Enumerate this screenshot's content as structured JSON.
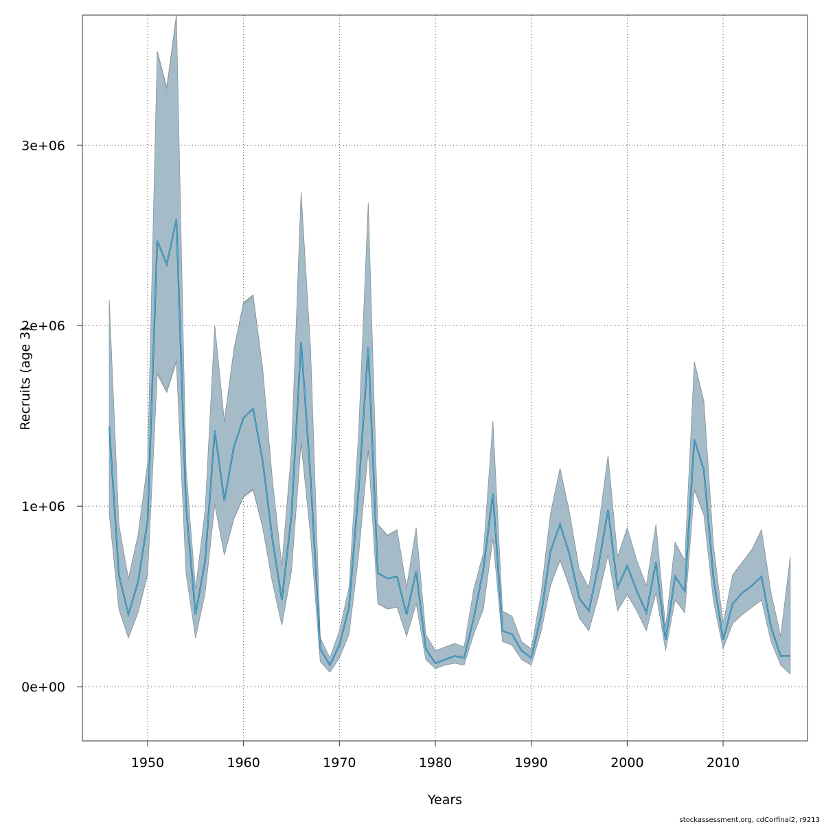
{
  "chart_data": {
    "type": "line",
    "xlabel": "Years",
    "ylabel": "Recruits (age 3)",
    "credit": "stockassessment.org, cdCorfinal2, r9213",
    "xlim": [
      1943.2,
      2018.8
    ],
    "ylim": [
      -300000,
      3720000
    ],
    "x_ticks": [
      1950,
      1960,
      1970,
      1980,
      1990,
      2000,
      2010
    ],
    "x_tick_labels": [
      "1950",
      "1960",
      "1970",
      "1980",
      "1990",
      "2000",
      "2010"
    ],
    "y_ticks": [
      0,
      1000000,
      2000000,
      3000000
    ],
    "y_tick_labels": [
      "0e+00",
      "1e+06",
      "2e+06",
      "3e+06"
    ],
    "grid": true,
    "colors": {
      "band_outer": "#9aa5ad",
      "band_inner": "#a8d8ec",
      "line_outer": "#3a5f73",
      "line_inner": "#3fb6e8",
      "grid": "#555555"
    },
    "series": [
      {
        "x": [
          1946,
          1947,
          1948,
          1949,
          1950,
          1951,
          1952,
          1953,
          1954,
          1955,
          1956,
          1957,
          1958,
          1959,
          1960,
          1961,
          1962,
          1963,
          1964,
          1965,
          1966,
          1967,
          1968,
          1969,
          1970,
          1971,
          1972,
          1973,
          1974,
          1975,
          1976,
          1977,
          1978,
          1979,
          1980,
          1981,
          1982,
          1983,
          1984,
          1985,
          1986,
          1987,
          1988,
          1989,
          1990,
          1991,
          1992,
          1993,
          1994,
          1995,
          1996,
          1997,
          1998,
          1999,
          2000,
          2001,
          2002,
          2003,
          2004,
          2005,
          2006,
          2007,
          2008,
          2009,
          2010,
          2011,
          2012,
          2013,
          2014,
          2015,
          2016,
          2017
        ],
        "y": [
          1440000,
          620000,
          400000,
          580000,
          920000,
          2470000,
          2340000,
          2590000,
          1000000,
          400000,
          700000,
          1420000,
          1030000,
          1330000,
          1490000,
          1540000,
          1250000,
          820000,
          480000,
          950000,
          1910000,
          1150000,
          210000,
          120000,
          230000,
          440000,
          1090000,
          1880000,
          630000,
          600000,
          610000,
          400000,
          640000,
          210000,
          130000,
          150000,
          170000,
          160000,
          380000,
          650000,
          1070000,
          310000,
          290000,
          200000,
          160000,
          390000,
          750000,
          900000,
          730000,
          490000,
          420000,
          670000,
          980000,
          550000,
          670000,
          530000,
          410000,
          690000,
          260000,
          610000,
          530000,
          1370000,
          1200000,
          600000,
          260000,
          460000,
          520000,
          560000,
          610000,
          330000,
          170000,
          170000
        ],
        "lower": [
          960000,
          430000,
          270000,
          410000,
          620000,
          1730000,
          1630000,
          1800000,
          630000,
          270000,
          520000,
          1010000,
          730000,
          930000,
          1050000,
          1090000,
          880000,
          580000,
          340000,
          640000,
          1350000,
          830000,
          140000,
          80000,
          160000,
          290000,
          730000,
          1310000,
          460000,
          430000,
          440000,
          280000,
          460000,
          150000,
          100000,
          120000,
          130000,
          120000,
          290000,
          430000,
          820000,
          250000,
          230000,
          150000,
          120000,
          300000,
          560000,
          700000,
          550000,
          380000,
          310000,
          500000,
          730000,
          420000,
          510000,
          420000,
          310000,
          520000,
          200000,
          480000,
          410000,
          1090000,
          950000,
          470000,
          210000,
          350000,
          400000,
          440000,
          480000,
          250000,
          120000,
          70000
        ],
        "upper": [
          2140000,
          900000,
          600000,
          840000,
          1240000,
          3520000,
          3320000,
          3720000,
          1210000,
          540000,
          980000,
          2000000,
          1470000,
          1870000,
          2130000,
          2170000,
          1760000,
          1150000,
          670000,
          1310000,
          2740000,
          1860000,
          270000,
          160000,
          310000,
          550000,
          1410000,
          2680000,
          900000,
          840000,
          870000,
          550000,
          880000,
          290000,
          200000,
          220000,
          240000,
          220000,
          540000,
          740000,
          1470000,
          420000,
          390000,
          250000,
          210000,
          510000,
          960000,
          1210000,
          960000,
          650000,
          550000,
          880000,
          1280000,
          720000,
          880000,
          700000,
          560000,
          900000,
          330000,
          800000,
          700000,
          1800000,
          1580000,
          780000,
          350000,
          620000,
          690000,
          760000,
          870000,
          520000,
          280000,
          720000
        ]
      }
    ]
  }
}
